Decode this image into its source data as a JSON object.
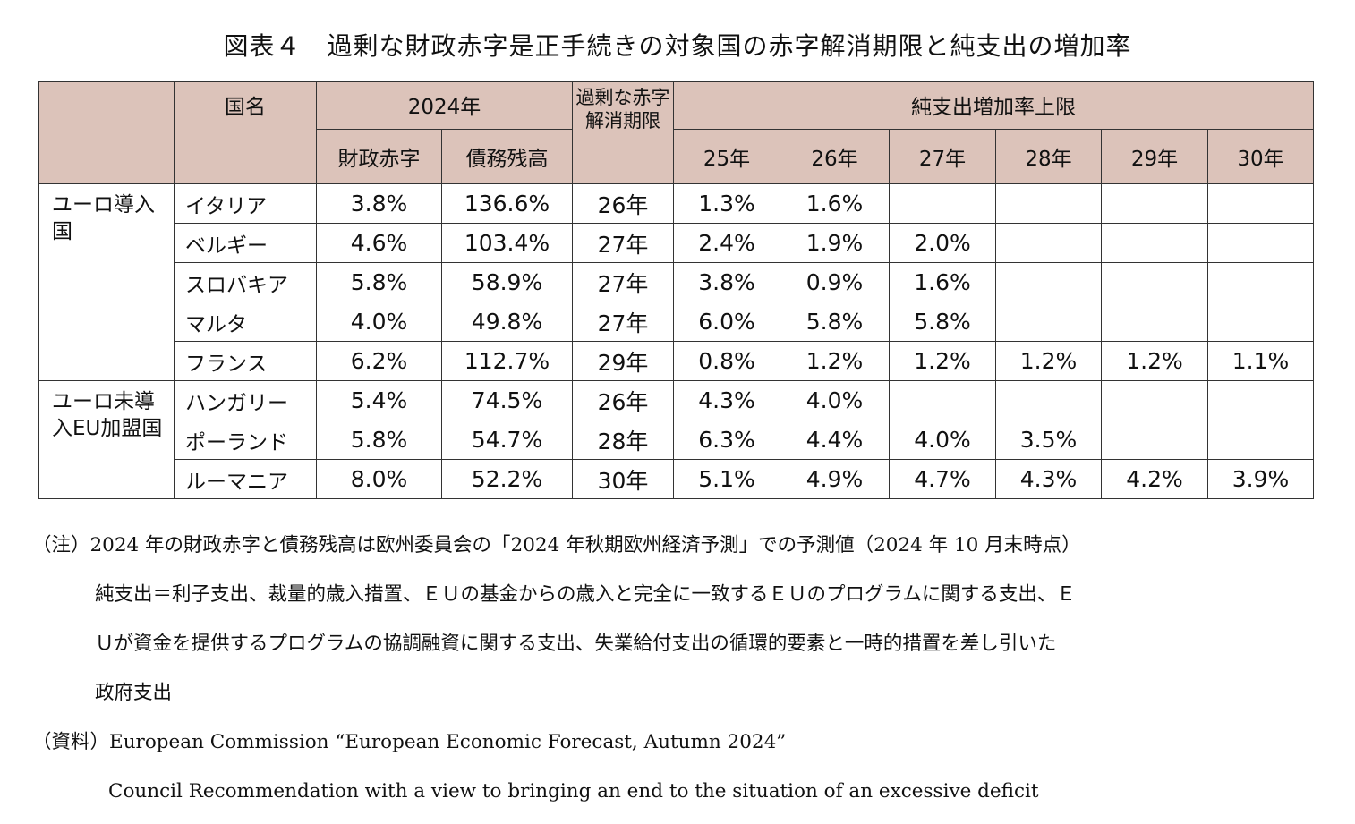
{
  "title": "図表４　過剰な財政赤字是正手続きの対象国の赤字解消期限と純支出の増加率",
  "table": {
    "header": {
      "country": "国名",
      "year_group": "2024年",
      "deficit": "財政赤字",
      "debt": "債務残高",
      "excessive_deficit_deadline": "過剰な赤字解消期限",
      "growth_group": "純支出増加率上限",
      "years": [
        "25年",
        "26年",
        "27年",
        "28年",
        "29年",
        "30年"
      ]
    },
    "groups": [
      {
        "label": "ユーロ導入国",
        "rows": [
          {
            "country": "イタリア",
            "deficit": "3.8%",
            "debt": "136.6%",
            "deadline": "26年",
            "growth": [
              "1.3%",
              "1.6%",
              "",
              "",
              "",
              ""
            ]
          },
          {
            "country": "ベルギー",
            "deficit": "4.6%",
            "debt": "103.4%",
            "deadline": "27年",
            "growth": [
              "2.4%",
              "1.9%",
              "2.0%",
              "",
              "",
              ""
            ]
          },
          {
            "country": "スロバキア",
            "deficit": "5.8%",
            "debt": "58.9%",
            "deadline": "27年",
            "growth": [
              "3.8%",
              "0.9%",
              "1.6%",
              "",
              "",
              ""
            ]
          },
          {
            "country": "マルタ",
            "deficit": "4.0%",
            "debt": "49.8%",
            "deadline": "27年",
            "growth": [
              "6.0%",
              "5.8%",
              "5.8%",
              "",
              "",
              ""
            ]
          },
          {
            "country": "フランス",
            "deficit": "6.2%",
            "debt": "112.7%",
            "deadline": "29年",
            "growth": [
              "0.8%",
              "1.2%",
              "1.2%",
              "1.2%",
              "1.2%",
              "1.1%"
            ]
          }
        ]
      },
      {
        "label": "ユーロ未導入EU加盟国",
        "rows": [
          {
            "country": "ハンガリー",
            "deficit": "5.4%",
            "debt": "74.5%",
            "deadline": "26年",
            "growth": [
              "4.3%",
              "4.0%",
              "",
              "",
              "",
              ""
            ]
          },
          {
            "country": "ポーランド",
            "deficit": "5.8%",
            "debt": "54.7%",
            "deadline": "28年",
            "growth": [
              "6.3%",
              "4.4%",
              "4.0%",
              "3.5%",
              "",
              ""
            ]
          },
          {
            "country": "ルーマニア",
            "deficit": "8.0%",
            "debt": "52.2%",
            "deadline": "30年",
            "growth": [
              "5.1%",
              "4.9%",
              "4.7%",
              "4.3%",
              "4.2%",
              "3.9%"
            ]
          }
        ]
      }
    ]
  },
  "notes": {
    "note_line1": "（注）2024 年の財政赤字と債務残高は欧州委員会の「2024 年秋期欧州経済予測」での予測値（2024 年 10 月末時点）",
    "note_line2": "純支出＝利子支出、裁量的歳入措置、ＥＵの基金からの歳入と完全に一致するＥＵのプログラムに関する支出、Ｅ",
    "note_line3": "Ｕが資金を提供するプログラムの協調融資に関する支出、失業給付支出の循環的要素と一時的措置を差し引いた",
    "note_line4": "政府支出",
    "source_line1": "（資料）European Commission “European Economic Forecast, Autumn 2024”",
    "source_line2": "Council Recommendation with a view to bringing an end to the situation of an excessive deficit"
  }
}
